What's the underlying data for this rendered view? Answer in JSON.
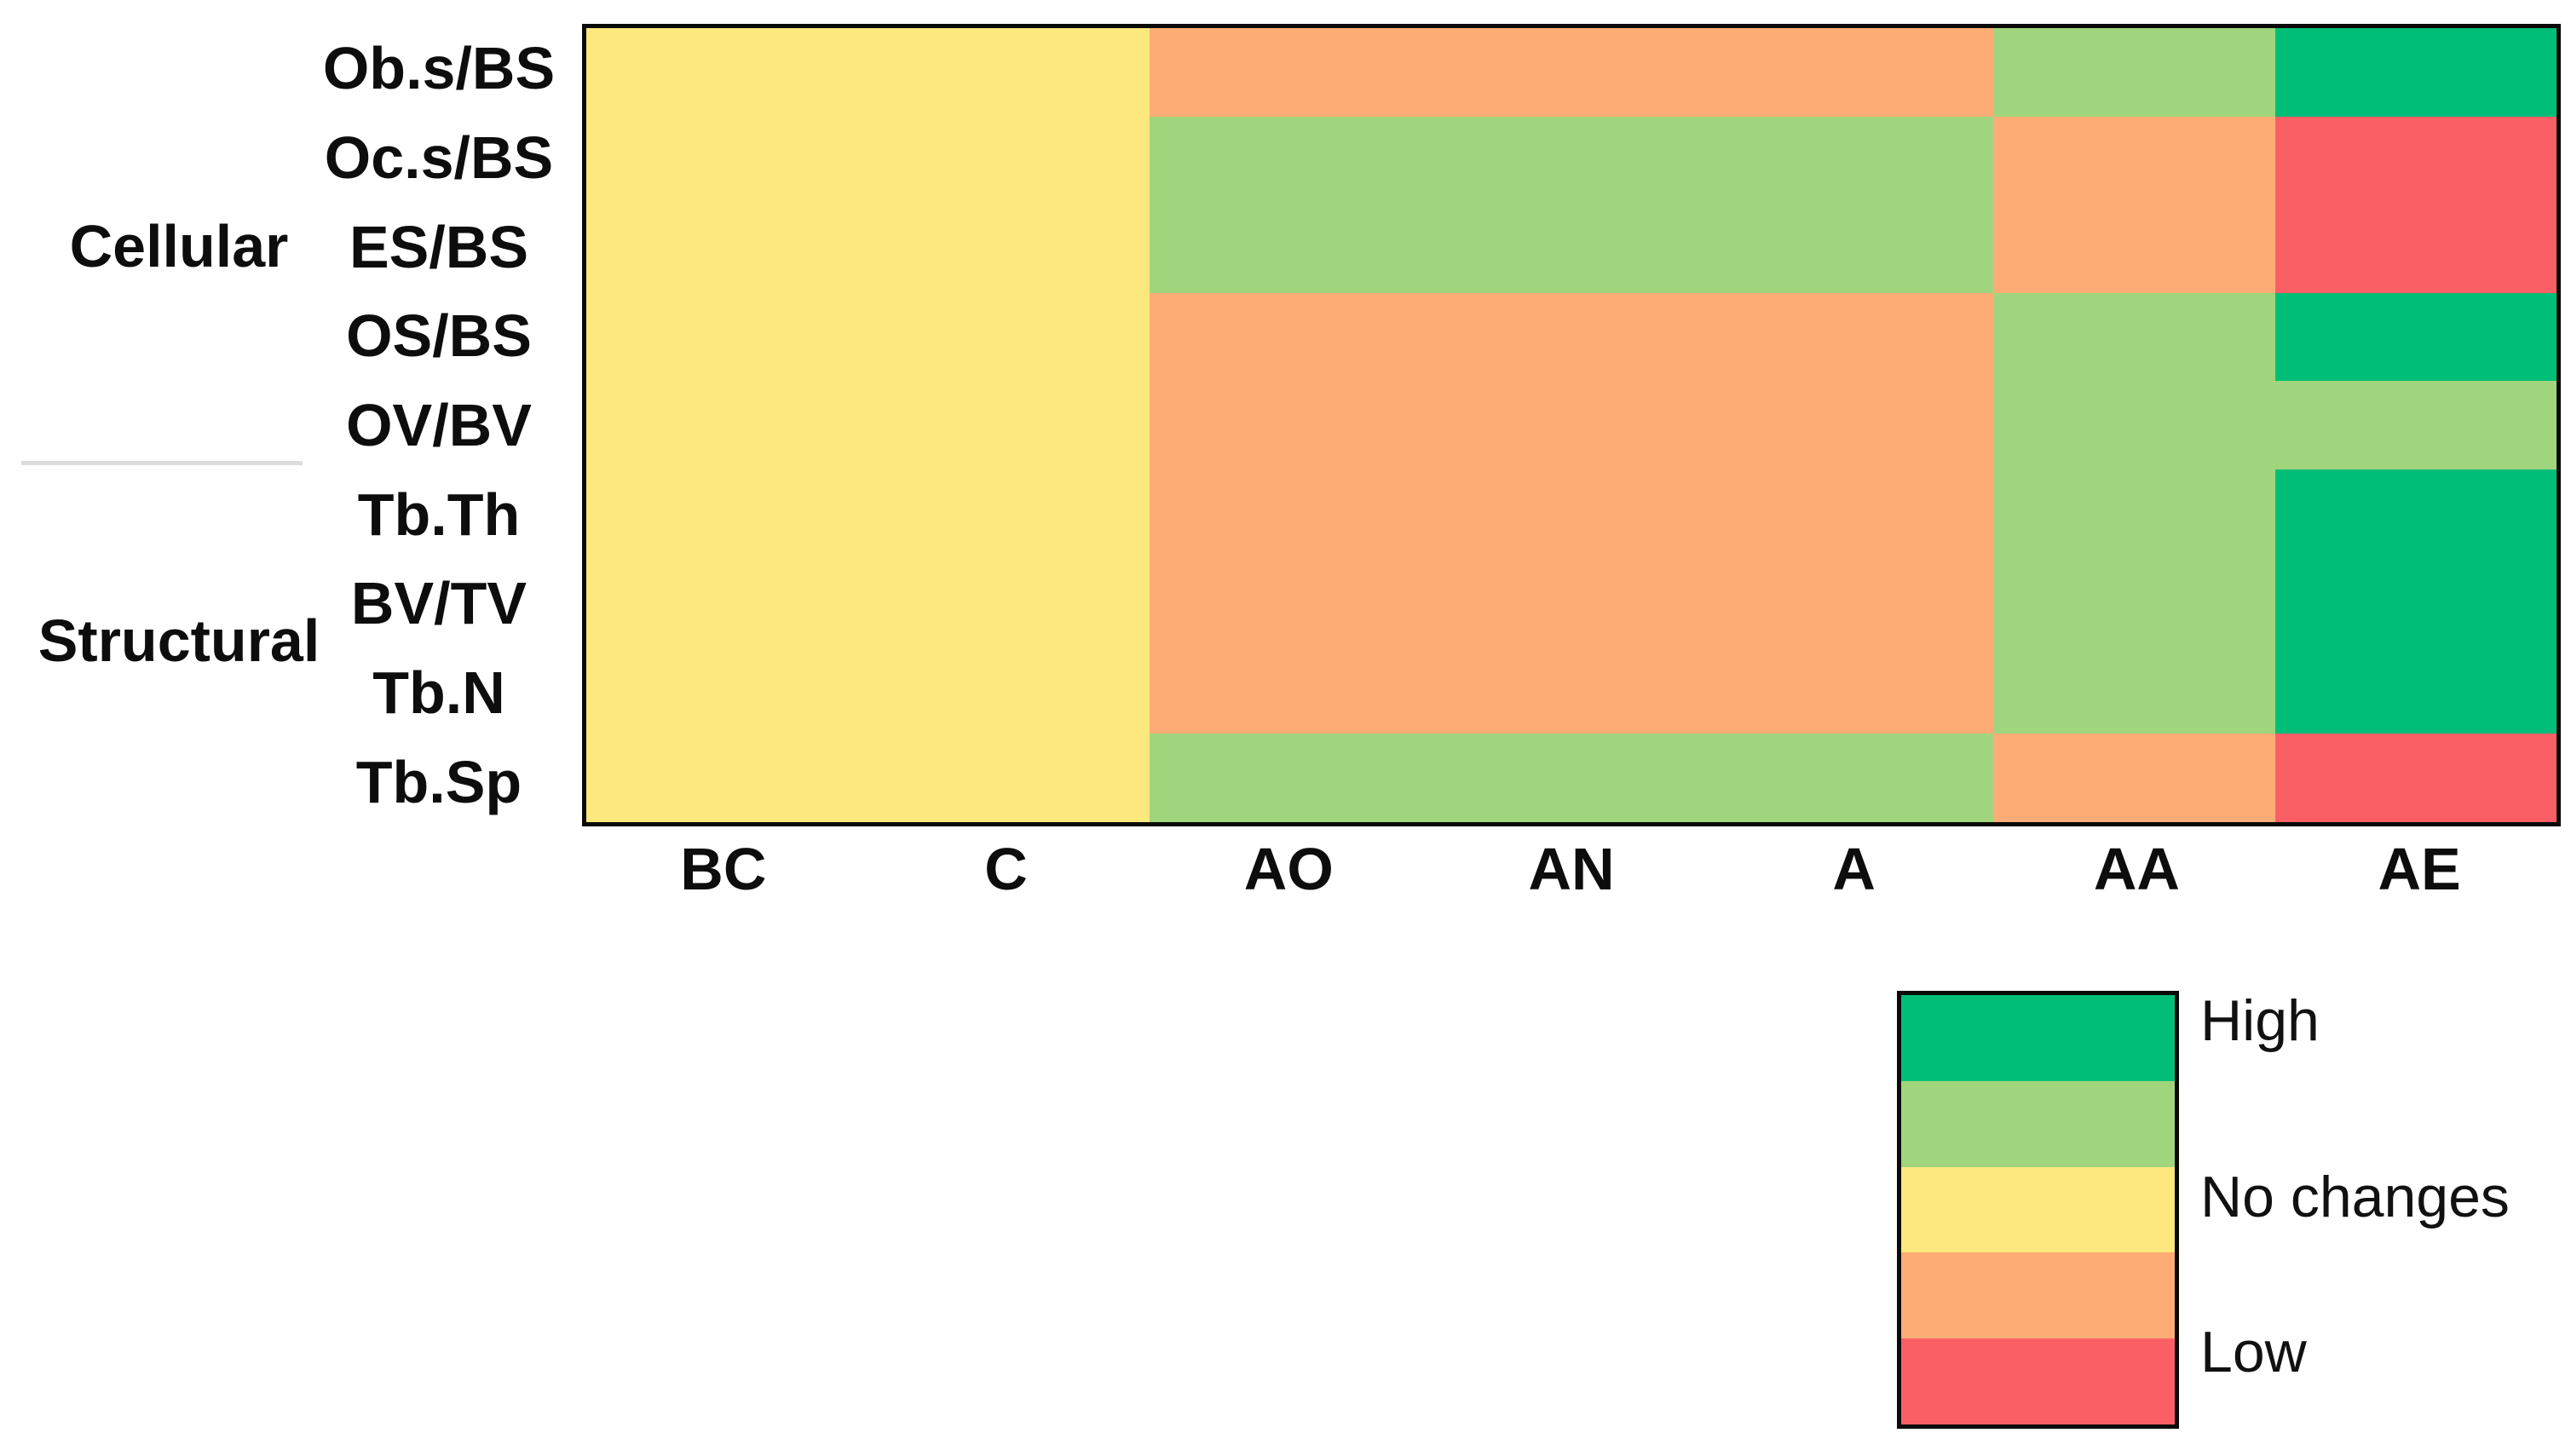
{
  "chart_data": {
    "type": "heatmap",
    "title": "",
    "columns": [
      "BC",
      "C",
      "AO",
      "AN",
      "A",
      "AA",
      "AE"
    ],
    "groups": [
      {
        "label": "Cellular",
        "rows": [
          "Ob.s/BS",
          "Oc.s/BS",
          "ES/BS",
          "OS/BS",
          "OV/BV"
        ]
      },
      {
        "label": "Structural",
        "rows": [
          "Tb.Th",
          "BV/TV",
          "Tb.N",
          "Tb.Sp"
        ]
      }
    ],
    "rows": [
      {
        "label": "Ob.s/BS",
        "group": "Cellular",
        "values": [
          "no_change",
          "no_change",
          "mid_low",
          "mid_low",
          "mid_low",
          "mid_high",
          "high"
        ]
      },
      {
        "label": "Oc.s/BS",
        "group": "Cellular",
        "values": [
          "no_change",
          "no_change",
          "mid_high",
          "mid_high",
          "mid_high",
          "mid_low",
          "low"
        ]
      },
      {
        "label": "ES/BS",
        "group": "Cellular",
        "values": [
          "no_change",
          "no_change",
          "mid_high",
          "mid_high",
          "mid_high",
          "mid_low",
          "low"
        ]
      },
      {
        "label": "OS/BS",
        "group": "Cellular",
        "values": [
          "no_change",
          "no_change",
          "mid_low",
          "mid_low",
          "mid_low",
          "mid_high",
          "high"
        ]
      },
      {
        "label": "OV/BV",
        "group": "Cellular",
        "values": [
          "no_change",
          "no_change",
          "mid_low",
          "mid_low",
          "mid_low",
          "mid_high",
          "mid_high"
        ]
      },
      {
        "label": "Tb.Th",
        "group": "Structural",
        "values": [
          "no_change",
          "no_change",
          "mid_low",
          "mid_low",
          "mid_low",
          "mid_high",
          "high"
        ]
      },
      {
        "label": "BV/TV",
        "group": "Structural",
        "values": [
          "no_change",
          "no_change",
          "mid_low",
          "mid_low",
          "mid_low",
          "mid_high",
          "high"
        ]
      },
      {
        "label": "Tb.N",
        "group": "Structural",
        "values": [
          "no_change",
          "no_change",
          "mid_low",
          "mid_low",
          "mid_low",
          "mid_high",
          "high"
        ]
      },
      {
        "label": "Tb.Sp",
        "group": "Structural",
        "values": [
          "no_change",
          "no_change",
          "mid_high",
          "mid_high",
          "mid_high",
          "mid_low",
          "low"
        ]
      }
    ],
    "palette": {
      "high": "#00BE78",
      "mid_high": "#A0D57D",
      "no_change": "#FCE87D",
      "mid_low": "#FCAC74",
      "low": "#FA5F66"
    },
    "legend": {
      "bands": [
        "high",
        "mid_high",
        "no_change",
        "mid_low",
        "low"
      ],
      "labels": {
        "high": "High",
        "no_change": "No changes",
        "low": "Low"
      }
    }
  }
}
